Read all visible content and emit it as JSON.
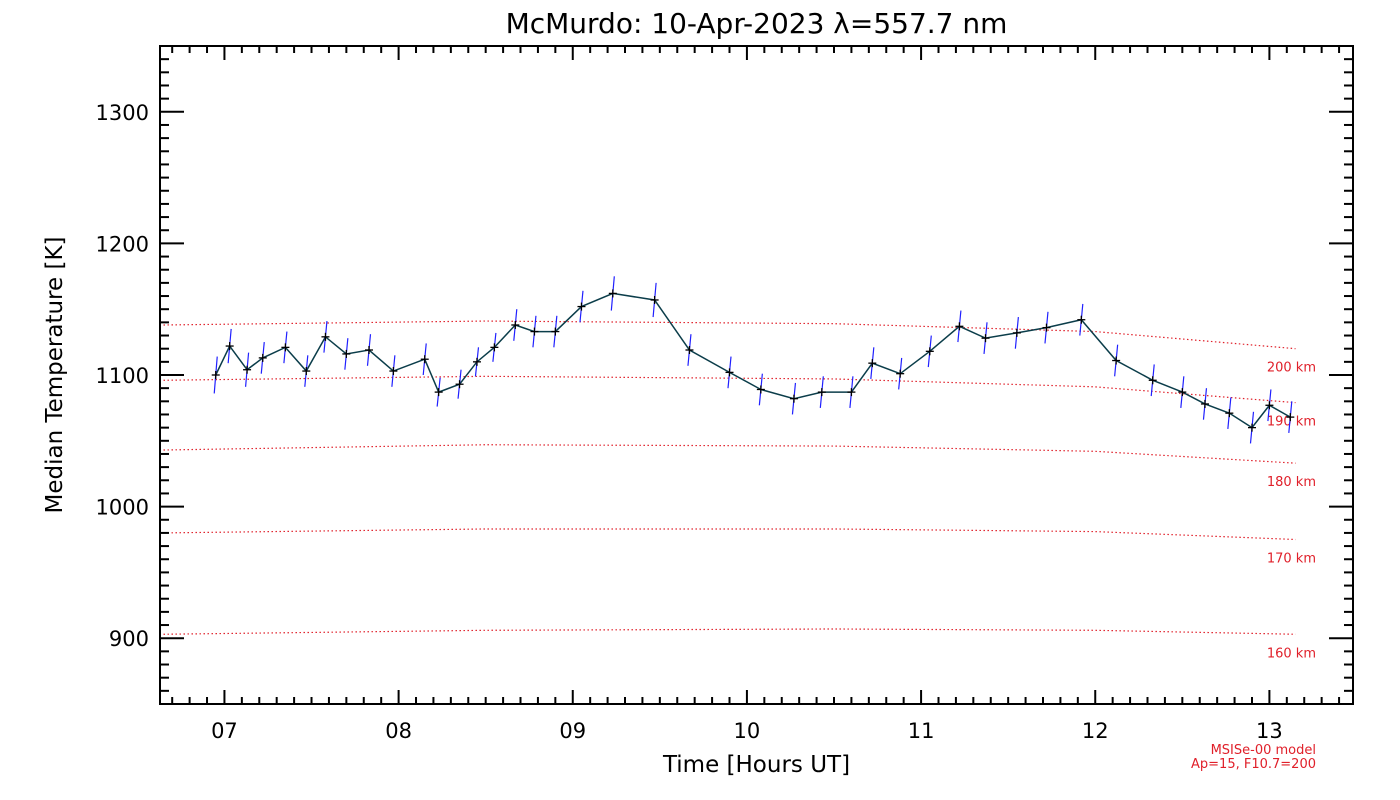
{
  "colors": {
    "data_line": "#0b3d4a",
    "error_bar": "#2020ff",
    "marker": "#000000",
    "model": "#e0202a",
    "axis": "#000000"
  },
  "chart_data": {
    "type": "line",
    "title": "McMurdo: 10-Apr-2023 λ=557.7 nm",
    "xlabel": "Time [Hours UT]",
    "ylabel": "Median Temperature [K]",
    "xlim": [
      6.63,
      13.48
    ],
    "ylim": [
      850,
      1350
    ],
    "xticks": [
      7,
      8,
      9,
      10,
      11,
      12,
      13
    ],
    "xtick_labels": [
      "07",
      "08",
      "09",
      "10",
      "11",
      "12",
      "13"
    ],
    "yticks": [
      900,
      1000,
      1100,
      1200,
      1300
    ],
    "ytick_labels": [
      "900",
      "1000",
      "1100",
      "1200",
      "1300"
    ],
    "grid": false,
    "series": [
      {
        "values_x": [
          6.95,
          7.03,
          7.13,
          7.22,
          7.35,
          7.47,
          7.58,
          7.7,
          7.83,
          7.97,
          8.15,
          8.23,
          8.35,
          8.45,
          8.55,
          8.67,
          8.78,
          8.9,
          9.05,
          9.23,
          9.47,
          9.67,
          9.9,
          10.08,
          10.27,
          10.43,
          10.6,
          10.72,
          10.88,
          11.05,
          11.22,
          11.37,
          11.55,
          11.72,
          11.92,
          12.12,
          12.33,
          12.5,
          12.63,
          12.77,
          12.9,
          13.0,
          13.12
        ],
        "values_y": [
          1100,
          1122,
          1104,
          1113,
          1121,
          1103,
          1129,
          1116,
          1119,
          1103,
          1112,
          1087,
          1093,
          1110,
          1121,
          1138,
          1133,
          1133,
          1152,
          1162,
          1157,
          1119,
          1102,
          1089,
          1082,
          1087,
          1087,
          1109,
          1101,
          1118,
          1137,
          1128,
          1132,
          1136,
          1142,
          1111,
          1096,
          1087,
          1078,
          1071,
          1060,
          1077,
          1068
        ],
        "errors": [
          14,
          13,
          13,
          12,
          12,
          12,
          12,
          12,
          12,
          12,
          12,
          11,
          11,
          11,
          11,
          12,
          12,
          12,
          12,
          13,
          13,
          12,
          12,
          12,
          12,
          12,
          12,
          12,
          12,
          12,
          12,
          12,
          12,
          12,
          12,
          12,
          12,
          12,
          12,
          12,
          12,
          12,
          12
        ]
      }
    ],
    "model_curves": [
      {
        "label": "200 km",
        "x": [
          6.65,
          8.5,
          10.5,
          12.0,
          13.15
        ],
        "y": [
          1138,
          1141,
          1139,
          1133,
          1120
        ]
      },
      {
        "label": "190 km",
        "x": [
          6.65,
          8.5,
          10.5,
          12.0,
          13.15
        ],
        "y": [
          1096,
          1099,
          1097,
          1091,
          1079
        ]
      },
      {
        "label": "180 km",
        "x": [
          6.65,
          8.5,
          10.5,
          12.0,
          13.15
        ],
        "y": [
          1043,
          1047,
          1046,
          1042,
          1033
        ]
      },
      {
        "label": "170 km",
        "x": [
          6.65,
          8.5,
          10.5,
          12.0,
          13.15
        ],
        "y": [
          980,
          983,
          983,
          981,
          975
        ]
      },
      {
        "label": "160 km",
        "x": [
          6.65,
          8.5,
          10.5,
          12.0,
          13.15
        ],
        "y": [
          903,
          906,
          907,
          906,
          903
        ]
      }
    ],
    "notes": [
      "MSISe-00 model",
      "Ap=15, F10.7=200"
    ]
  }
}
